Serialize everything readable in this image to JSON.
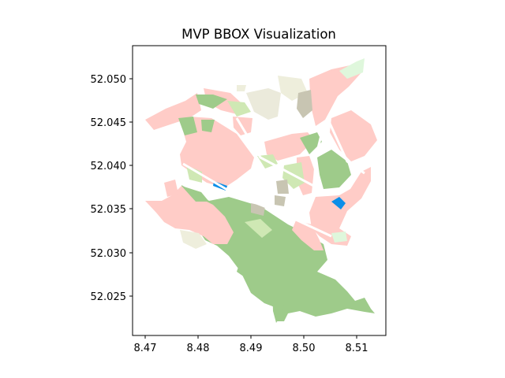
{
  "title": "MVP BBOX Visualization",
  "colors": {
    "residential": "#ffccc7",
    "grass": "#9ecb8a",
    "meadow": "#cfe8b4",
    "farmyard": "#eeeedc",
    "industrial": "#c8c5b2",
    "brownfield": "#ebeadb",
    "water": "#0b8ee8",
    "park": "#dff7dc",
    "axes": "#000000"
  },
  "axes": {
    "x_ticks": [
      "8.47",
      "8.48",
      "8.49",
      "8.50",
      "8.51"
    ],
    "y_ticks": [
      "52.025",
      "52.030",
      "52.035",
      "52.040",
      "52.045",
      "52.050"
    ],
    "xlim": [
      8.4675,
      8.5155
    ],
    "ylim": [
      52.0205,
      52.0545
    ]
  }
}
